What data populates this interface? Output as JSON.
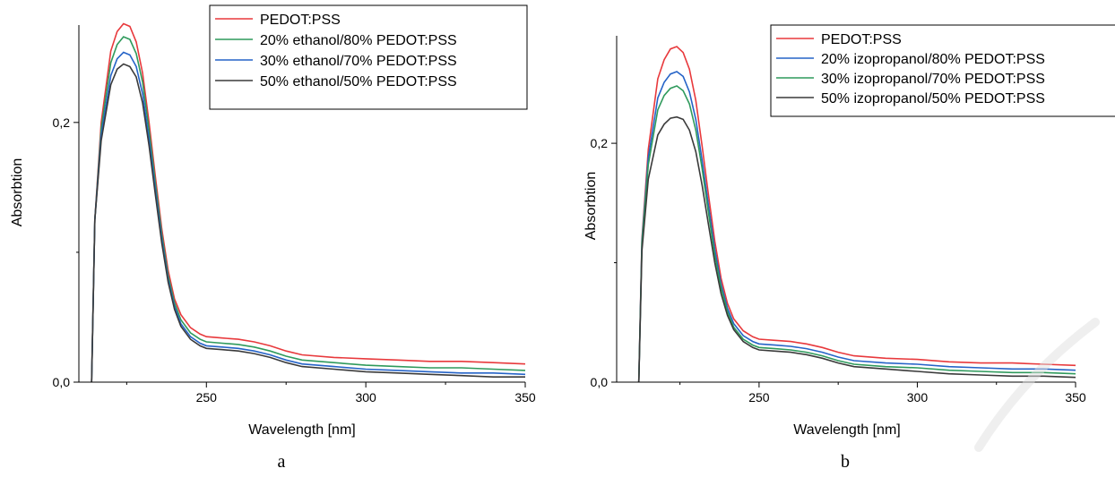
{
  "chart_data": [
    {
      "type": "line",
      "panel_label": "a",
      "xlabel": "Wavelength [nm]",
      "ylabel": "Absorbtion",
      "xlim": [
        210,
        350
      ],
      "ylim": [
        0,
        0.275
      ],
      "x_ticks": [
        250,
        300,
        350
      ],
      "y_ticks": [
        0.0,
        0.2
      ],
      "y_tick_labels": [
        "0,0",
        "0,2"
      ],
      "legend_position": "top-right",
      "x": [
        214,
        215,
        217,
        220,
        222,
        224,
        226,
        228,
        230,
        232,
        234,
        236,
        238,
        240,
        242,
        245,
        248,
        250,
        255,
        260,
        265,
        270,
        275,
        280,
        290,
        300,
        310,
        320,
        330,
        340,
        350
      ],
      "series": [
        {
          "name": "PEDOT:PSS",
          "color": "#e8393c",
          "values": [
            0,
            0.125,
            0.2,
            0.255,
            0.27,
            0.276,
            0.274,
            0.262,
            0.238,
            0.2,
            0.158,
            0.118,
            0.086,
            0.064,
            0.052,
            0.042,
            0.037,
            0.035,
            0.034,
            0.033,
            0.031,
            0.028,
            0.024,
            0.021,
            0.019,
            0.018,
            0.017,
            0.016,
            0.016,
            0.015,
            0.014
          ]
        },
        {
          "name": "20% ethanol/80% PEDOT:PSS",
          "color": "#2f9a5c",
          "values": [
            0,
            0.125,
            0.195,
            0.246,
            0.26,
            0.266,
            0.264,
            0.253,
            0.231,
            0.194,
            0.153,
            0.114,
            0.082,
            0.061,
            0.048,
            0.038,
            0.033,
            0.031,
            0.03,
            0.029,
            0.027,
            0.024,
            0.02,
            0.017,
            0.015,
            0.013,
            0.012,
            0.011,
            0.011,
            0.01,
            0.009
          ]
        },
        {
          "name": "30% ethanol/70% PEDOT:PSS",
          "color": "#2563c7",
          "values": [
            0,
            0.125,
            0.19,
            0.236,
            0.249,
            0.254,
            0.252,
            0.243,
            0.222,
            0.187,
            0.148,
            0.11,
            0.079,
            0.058,
            0.045,
            0.035,
            0.03,
            0.028,
            0.027,
            0.026,
            0.024,
            0.021,
            0.017,
            0.014,
            0.012,
            0.01,
            0.009,
            0.008,
            0.007,
            0.007,
            0.006
          ]
        },
        {
          "name": "50% ethanol/50% PEDOT:PSS",
          "color": "#3a3a3a",
          "values": [
            0,
            0.125,
            0.186,
            0.229,
            0.241,
            0.245,
            0.243,
            0.235,
            0.215,
            0.182,
            0.144,
            0.107,
            0.077,
            0.056,
            0.043,
            0.033,
            0.028,
            0.026,
            0.025,
            0.024,
            0.022,
            0.019,
            0.015,
            0.012,
            0.01,
            0.008,
            0.007,
            0.006,
            0.005,
            0.004,
            0.004
          ]
        }
      ]
    },
    {
      "type": "line",
      "panel_label": "b",
      "xlabel": "Wavelength [nm]",
      "ylabel": "Absorbtion",
      "xlim": [
        205,
        350
      ],
      "ylim": [
        0,
        0.29
      ],
      "x_ticks": [
        250,
        300,
        350
      ],
      "y_ticks": [
        0.0,
        0.2
      ],
      "y_tick_labels": [
        "0,0",
        "0,2"
      ],
      "legend_position": "top-right",
      "x": [
        212,
        213,
        215,
        218,
        220,
        222,
        224,
        226,
        228,
        230,
        232,
        234,
        236,
        238,
        240,
        242,
        245,
        248,
        250,
        255,
        260,
        265,
        270,
        275,
        280,
        290,
        300,
        310,
        320,
        330,
        340,
        350
      ],
      "series": [
        {
          "name": "PEDOT:PSS",
          "color": "#e8393c",
          "values": [
            0,
            0.12,
            0.195,
            0.254,
            0.27,
            0.279,
            0.281,
            0.276,
            0.262,
            0.236,
            0.198,
            0.157,
            0.118,
            0.087,
            0.066,
            0.053,
            0.043,
            0.038,
            0.036,
            0.035,
            0.034,
            0.032,
            0.029,
            0.025,
            0.022,
            0.02,
            0.019,
            0.017,
            0.016,
            0.016,
            0.015,
            0.014
          ]
        },
        {
          "name": "20% izopropanol/80% PEDOT:PSS",
          "color": "#2563c7",
          "values": [
            0,
            0.118,
            0.188,
            0.238,
            0.251,
            0.258,
            0.26,
            0.256,
            0.243,
            0.22,
            0.186,
            0.148,
            0.111,
            0.082,
            0.062,
            0.049,
            0.039,
            0.034,
            0.032,
            0.031,
            0.03,
            0.028,
            0.025,
            0.021,
            0.018,
            0.016,
            0.015,
            0.013,
            0.012,
            0.011,
            0.011,
            0.01
          ]
        },
        {
          "name": "30% izopropanol/70% PEDOT:PSS",
          "color": "#2f9a5c",
          "values": [
            0,
            0.116,
            0.182,
            0.228,
            0.24,
            0.246,
            0.248,
            0.244,
            0.233,
            0.211,
            0.179,
            0.142,
            0.106,
            0.079,
            0.059,
            0.046,
            0.036,
            0.031,
            0.029,
            0.028,
            0.027,
            0.025,
            0.022,
            0.018,
            0.015,
            0.013,
            0.012,
            0.01,
            0.009,
            0.008,
            0.008,
            0.007
          ]
        },
        {
          "name": "50% izopropanol/50% PEDOT:PSS",
          "color": "#3a3a3a",
          "values": [
            0,
            0.11,
            0.17,
            0.207,
            0.216,
            0.221,
            0.222,
            0.22,
            0.211,
            0.193,
            0.165,
            0.132,
            0.1,
            0.074,
            0.056,
            0.044,
            0.034,
            0.029,
            0.027,
            0.026,
            0.025,
            0.023,
            0.02,
            0.016,
            0.013,
            0.011,
            0.009,
            0.007,
            0.006,
            0.005,
            0.005,
            0.004
          ]
        }
      ]
    }
  ]
}
